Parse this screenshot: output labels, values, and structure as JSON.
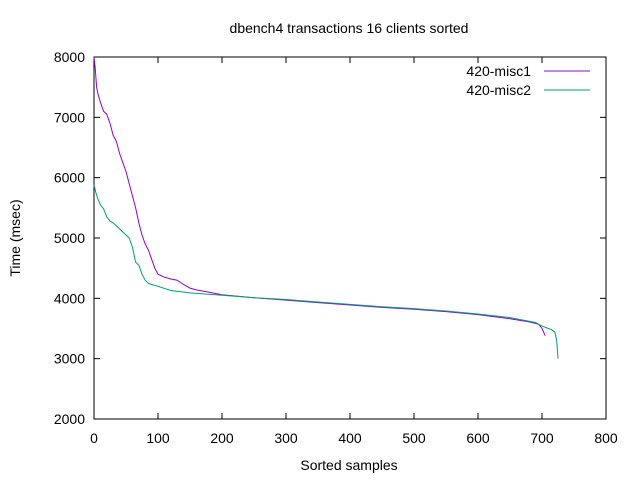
{
  "chart_data": {
    "type": "line",
    "title": "dbench4 transactions 16 clients sorted",
    "xlabel": "Sorted samples",
    "ylabel": "Time (msec)",
    "xlim": [
      0,
      800
    ],
    "ylim": [
      2000,
      8000
    ],
    "xticks": [
      0,
      100,
      200,
      300,
      400,
      500,
      600,
      700,
      800
    ],
    "yticks": [
      2000,
      3000,
      4000,
      5000,
      6000,
      7000,
      8000
    ],
    "legend_position": "top-right",
    "grid": false,
    "series": [
      {
        "name": "420-misc1",
        "color": "#9400d3",
        "x": [
          0,
          2,
          4,
          6,
          10,
          15,
          20,
          25,
          30,
          35,
          40,
          45,
          50,
          55,
          60,
          65,
          70,
          75,
          80,
          85,
          90,
          95,
          100,
          110,
          120,
          130,
          140,
          150,
          160,
          180,
          200,
          250,
          300,
          350,
          400,
          450,
          500,
          550,
          600,
          650,
          680,
          695,
          700,
          705
        ],
        "y": [
          8000,
          7800,
          7500,
          7400,
          7250,
          7100,
          7050,
          6900,
          6700,
          6600,
          6400,
          6250,
          6100,
          5900,
          5700,
          5500,
          5250,
          5050,
          4900,
          4800,
          4650,
          4500,
          4400,
          4350,
          4320,
          4300,
          4230,
          4170,
          4140,
          4100,
          4060,
          4010,
          3970,
          3930,
          3890,
          3850,
          3820,
          3780,
          3730,
          3660,
          3610,
          3570,
          3500,
          3380
        ]
      },
      {
        "name": "420-misc2",
        "color": "#009e73",
        "x": [
          0,
          3,
          6,
          10,
          15,
          20,
          25,
          30,
          35,
          40,
          45,
          50,
          55,
          60,
          65,
          70,
          75,
          80,
          85,
          90,
          100,
          120,
          150,
          200,
          250,
          300,
          350,
          400,
          450,
          500,
          550,
          600,
          650,
          690,
          700,
          710,
          715,
          720,
          723,
          725
        ],
        "y": [
          5880,
          5750,
          5650,
          5550,
          5480,
          5350,
          5280,
          5250,
          5200,
          5150,
          5100,
          5050,
          5000,
          4850,
          4600,
          4550,
          4400,
          4300,
          4250,
          4230,
          4200,
          4130,
          4090,
          4050,
          4010,
          3980,
          3940,
          3900,
          3860,
          3830,
          3790,
          3740,
          3680,
          3600,
          3540,
          3500,
          3480,
          3440,
          3300,
          3000
        ]
      }
    ]
  }
}
